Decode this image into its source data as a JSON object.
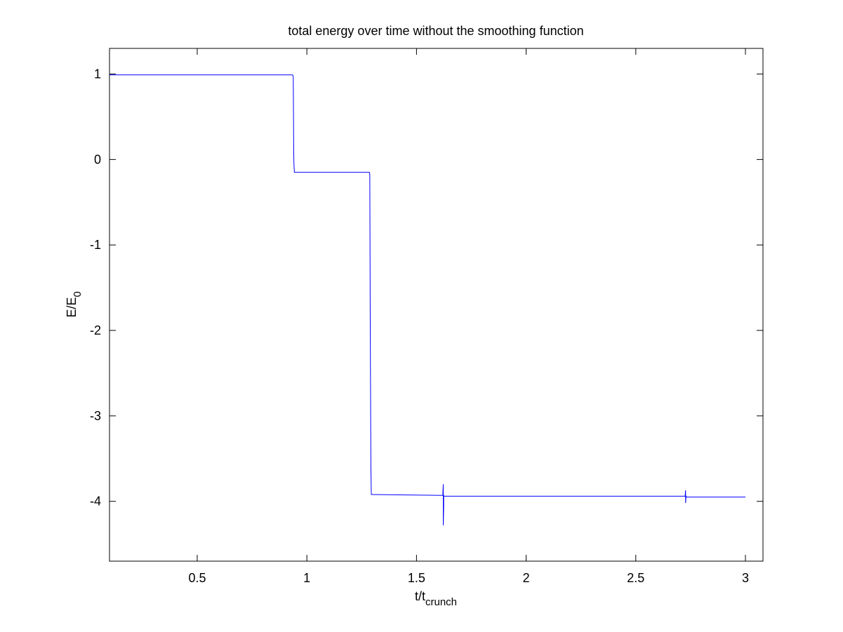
{
  "chart_data": {
    "type": "line",
    "title": "total energy over time without the smoothing function",
    "xlabel": {
      "main": "t/t",
      "sub": "crunch"
    },
    "ylabel": {
      "main": "E/E",
      "sub": "0"
    },
    "xlim": [
      0.1,
      3.08
    ],
    "ylim": [
      -4.7,
      1.3
    ],
    "xticks": [
      0.5,
      1,
      1.5,
      2,
      2.5,
      3
    ],
    "xtick_labels": [
      "0.5",
      "1",
      "1.5",
      "2",
      "2.5",
      "3"
    ],
    "yticks": [
      1,
      0,
      -1,
      -2,
      -3,
      -4
    ],
    "ytick_labels": [
      "1",
      "0",
      "-1",
      "-2",
      "-3",
      "-4"
    ],
    "grid": false,
    "series": [
      {
        "color": "#0000ff",
        "x": [
          0.1,
          0.935,
          0.938,
          0.94,
          0.94,
          0.941,
          0.941,
          0.943,
          1.285,
          1.287,
          1.289,
          1.289,
          1.292,
          1.294,
          1.296,
          1.62,
          1.622,
          1.622,
          1.624,
          1.624,
          1.626,
          2.725,
          2.727,
          2.727,
          2.729,
          2.729,
          2.731,
          3.0
        ],
        "y": [
          0.99,
          0.99,
          0.97,
          0.1,
          0.1,
          -0.05,
          -0.05,
          -0.15,
          -0.15,
          -0.17,
          -1.85,
          -1.85,
          -3.6,
          -3.92,
          -3.92,
          -3.93,
          -3.8,
          -4.28,
          -4.05,
          -3.93,
          -3.94,
          -3.94,
          -3.87,
          -4.02,
          -3.94,
          -3.94,
          -3.95,
          -3.95
        ]
      }
    ]
  }
}
